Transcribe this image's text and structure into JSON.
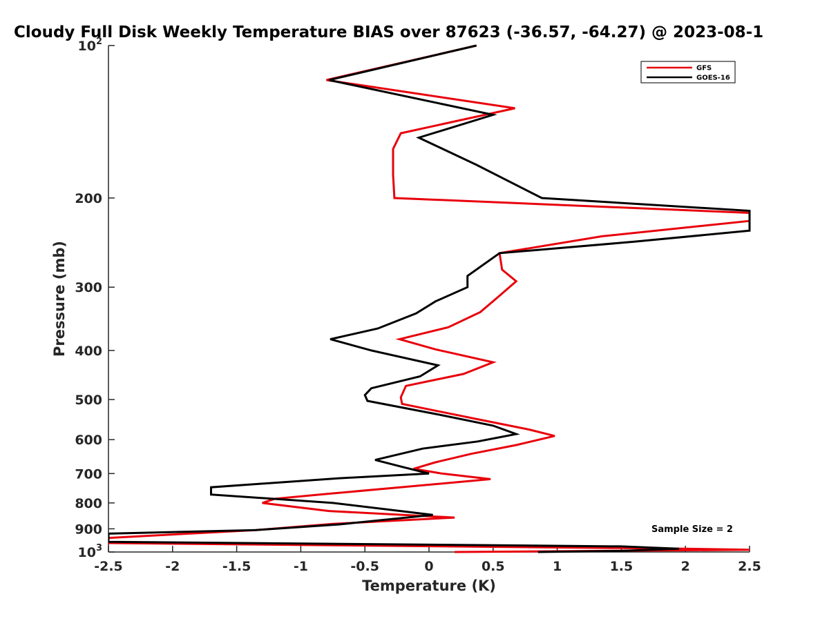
{
  "chart_data": {
    "type": "line",
    "title": "Cloudy Full Disk Weekly Temperature BIAS over 87623 (-36.57, -64.27) @ 2023-08-1",
    "xlabel": "Temperature (K)",
    "ylabel": "Pressure (mb)",
    "xlim": [
      -2.5,
      2.5
    ],
    "ylim": [
      100,
      1000
    ],
    "y_scale": "log",
    "y_reversed": true,
    "x_ticks": [
      "-2.5",
      "-2",
      "-1.5",
      "-1",
      "-0.5",
      "0",
      "0.5",
      "1",
      "1.5",
      "2",
      "2.5"
    ],
    "y_ticks": [
      {
        "value": 100,
        "label": "10",
        "sup": "2"
      },
      {
        "value": 200,
        "label": "200",
        "sup": ""
      },
      {
        "value": 300,
        "label": "300",
        "sup": ""
      },
      {
        "value": 400,
        "label": "400",
        "sup": ""
      },
      {
        "value": 500,
        "label": "500",
        "sup": ""
      },
      {
        "value": 600,
        "label": "600",
        "sup": ""
      },
      {
        "value": 700,
        "label": "700",
        "sup": ""
      },
      {
        "value": 800,
        "label": "800",
        "sup": ""
      },
      {
        "value": 900,
        "label": "900",
        "sup": ""
      },
      {
        "value": 1000,
        "label": "10",
        "sup": "3"
      }
    ],
    "legend_position": "top-right",
    "annotation": "Sample Size = 2",
    "series": [
      {
        "name": "GFS",
        "color": "#e8000b",
        "points": [
          [
            0.37,
            100
          ],
          [
            -0.8,
            117
          ],
          [
            0.67,
            133
          ],
          [
            -0.22,
            149
          ],
          [
            -0.28,
            160
          ],
          [
            -0.28,
            180
          ],
          [
            -0.27,
            200
          ],
          [
            2.5,
            214
          ],
          [
            2.5,
            222
          ],
          [
            1.35,
            238
          ],
          [
            0.55,
            257
          ],
          [
            0.57,
            277
          ],
          [
            0.68,
            292
          ],
          [
            0.53,
            315
          ],
          [
            0.4,
            336
          ],
          [
            0.15,
            360
          ],
          [
            -0.23,
            380
          ],
          [
            0.05,
            398
          ],
          [
            0.5,
            422
          ],
          [
            0.27,
            445
          ],
          [
            -0.18,
            470
          ],
          [
            -0.22,
            495
          ],
          [
            -0.21,
            510
          ],
          [
            0.35,
            545
          ],
          [
            0.78,
            573
          ],
          [
            0.98,
            590
          ],
          [
            0.68,
            615
          ],
          [
            0.33,
            640
          ],
          [
            0.05,
            665
          ],
          [
            -0.12,
            685
          ],
          [
            0.1,
            700
          ],
          [
            0.48,
            718
          ],
          [
            -0.8,
            768
          ],
          [
            -1.2,
            785
          ],
          [
            -1.3,
            800
          ],
          [
            -0.78,
            830
          ],
          [
            0.2,
            855
          ],
          [
            -0.75,
            880
          ],
          [
            -1.35,
            905
          ],
          [
            -2.5,
            938
          ],
          [
            -2.5,
            960
          ],
          [
            2.0,
            985
          ],
          [
            2.5,
            990
          ],
          [
            0.2,
            1000
          ]
        ]
      },
      {
        "name": "GOES-16",
        "color": "#000000",
        "points": [
          [
            0.37,
            100
          ],
          [
            -0.78,
            117
          ],
          [
            0.5,
            137
          ],
          [
            -0.08,
            152
          ],
          [
            0.37,
            172
          ],
          [
            0.88,
            200
          ],
          [
            2.5,
            212
          ],
          [
            2.5,
            225
          ],
          [
            2.5,
            232
          ],
          [
            1.6,
            244
          ],
          [
            0.55,
            257
          ],
          [
            0.3,
            285
          ],
          [
            0.3,
            300
          ],
          [
            0.05,
            320
          ],
          [
            -0.1,
            338
          ],
          [
            -0.4,
            362
          ],
          [
            -0.77,
            380
          ],
          [
            -0.45,
            400
          ],
          [
            0.07,
            428
          ],
          [
            -0.07,
            450
          ],
          [
            -0.45,
            475
          ],
          [
            -0.5,
            490
          ],
          [
            -0.48,
            503
          ],
          [
            0.07,
            535
          ],
          [
            0.5,
            563
          ],
          [
            0.68,
            585
          ],
          [
            0.38,
            605
          ],
          [
            -0.05,
            625
          ],
          [
            -0.42,
            658
          ],
          [
            -0.2,
            680
          ],
          [
            0.0,
            700
          ],
          [
            -0.7,
            715
          ],
          [
            -1.7,
            745
          ],
          [
            -1.7,
            770
          ],
          [
            -0.75,
            800
          ],
          [
            0.03,
            845
          ],
          [
            -0.7,
            882
          ],
          [
            -1.35,
            905
          ],
          [
            -2.5,
            920
          ],
          [
            -2.5,
            955
          ],
          [
            1.5,
            975
          ],
          [
            1.95,
            985
          ],
          [
            1.5,
            995
          ],
          [
            0.85,
            1000
          ]
        ]
      }
    ]
  }
}
